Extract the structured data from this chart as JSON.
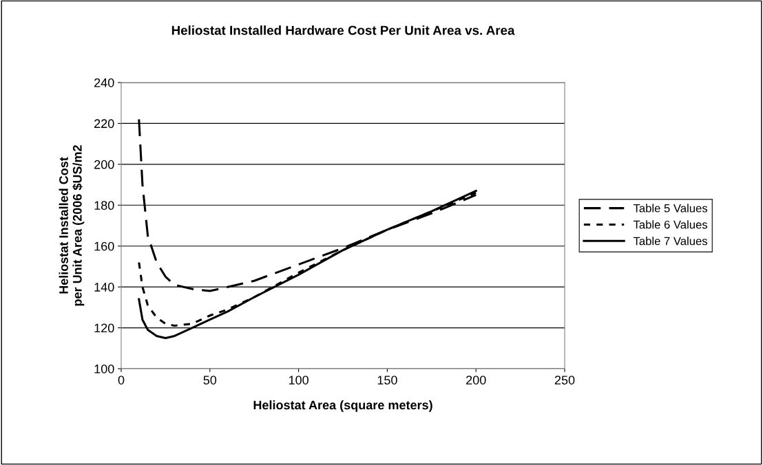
{
  "chart_data": {
    "type": "line",
    "title": "Heliostat Installed Hardware Cost Per Unit Area vs. Area",
    "xlabel": "Heliostat Area (square meters)",
    "ylabel": "Heliostat Installed Cost\nper Unit Area (2006 $US/m2",
    "x": [
      10,
      12,
      15,
      20,
      25,
      30,
      40,
      50,
      60,
      75,
      100,
      125,
      150,
      175,
      200
    ],
    "series": [
      {
        "name": "Table 5 Values",
        "color": "#000000",
        "line_style": "dashed",
        "values": [
          222,
          190,
          165,
          152,
          145,
          141,
          139,
          138,
          140,
          143,
          151,
          159,
          168,
          176,
          185
        ]
      },
      {
        "name": "Table 6 Values",
        "color": "#000000",
        "line_style": "dotted",
        "values": [
          152,
          140,
          131,
          125,
          122,
          121,
          122,
          126,
          129,
          135,
          147,
          158,
          168,
          177,
          186
        ]
      },
      {
        "name": "Table 7 Values",
        "color": "#000000",
        "line_style": "solid",
        "values": [
          134,
          124,
          119,
          116,
          115,
          116,
          120,
          124,
          128,
          135,
          146,
          158,
          168,
          177,
          187
        ]
      }
    ],
    "xlim": [
      0,
      250
    ],
    "xticks": [
      0,
      50,
      100,
      150,
      200,
      250
    ],
    "ylim": [
      100,
      240
    ],
    "yticks": [
      100,
      120,
      140,
      160,
      180,
      200,
      220,
      240
    ],
    "grid": "y",
    "legend": "right",
    "marker": "none"
  }
}
